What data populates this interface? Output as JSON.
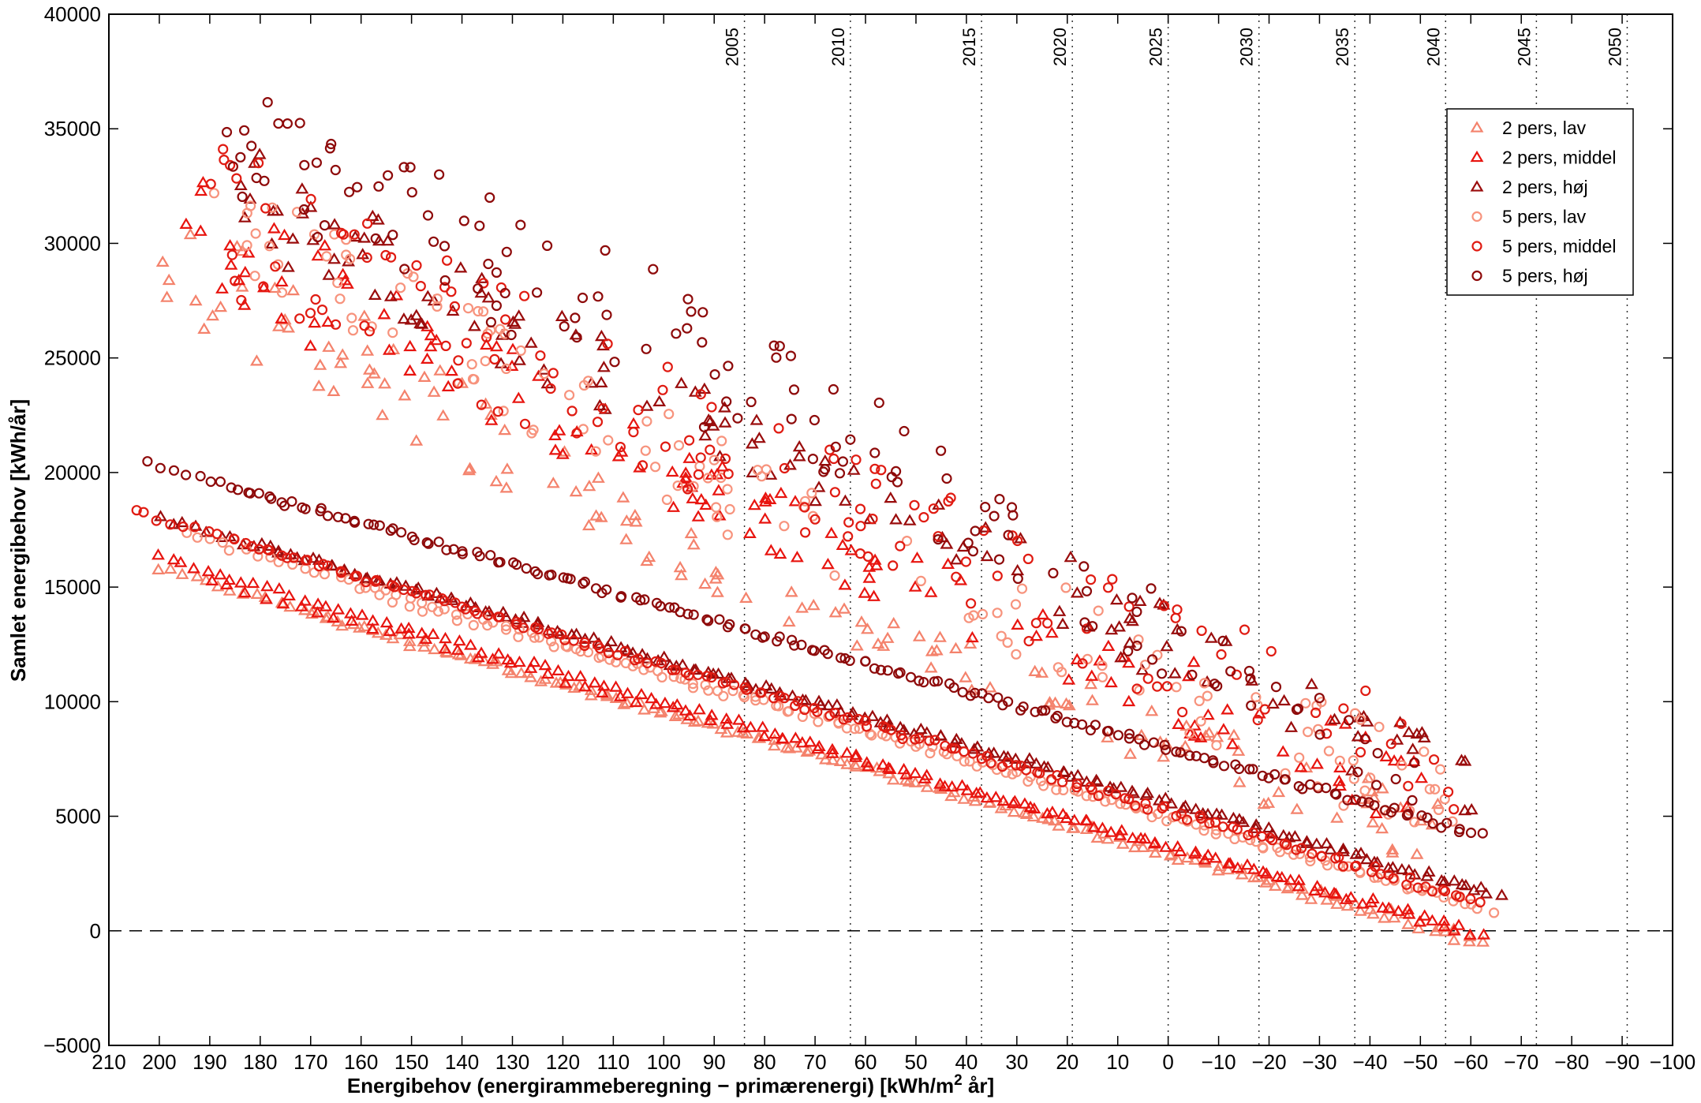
{
  "chart_data": {
    "type": "scatter",
    "title": "",
    "xlabel_main": "Energibehov (energirammeberegning − primærenergi) [kWh/m",
    "xlabel_sup": "2",
    "xlabel_tail": " år]",
    "ylabel": "Samlet energibehov [kWh/år]",
    "xlim": [
      210,
      -100
    ],
    "ylim": [
      -5000,
      40000
    ],
    "x_reversed": true,
    "x_ticks": [
      210,
      200,
      190,
      180,
      170,
      160,
      150,
      140,
      130,
      120,
      110,
      100,
      90,
      80,
      70,
      60,
      50,
      40,
      30,
      20,
      10,
      0,
      -10,
      -20,
      -30,
      -40,
      -50,
      -60,
      -70,
      -80,
      -90,
      -100
    ],
    "x_tick_labels": [
      "210",
      "200",
      "190",
      "180",
      "170",
      "160",
      "150",
      "140",
      "130",
      "120",
      "110",
      "100",
      "90",
      "80",
      "70",
      "60",
      "50",
      "40",
      "30",
      "20",
      "10",
      "0",
      "−10",
      "−20",
      "−30",
      "−40",
      "−50",
      "−60",
      "−70",
      "−80",
      "−90",
      "−100"
    ],
    "y_ticks": [
      -5000,
      0,
      5000,
      10000,
      15000,
      20000,
      25000,
      30000,
      35000,
      40000
    ],
    "y_tick_labels": [
      "−5000",
      "0",
      "5000",
      "10000",
      "15000",
      "20000",
      "25000",
      "30000",
      "35000",
      "40000"
    ],
    "grid": false,
    "reference_lines": [
      {
        "label": "2005",
        "x": 84
      },
      {
        "label": "2010",
        "x": 63
      },
      {
        "label": "2015",
        "x": 37
      },
      {
        "label": "2020",
        "x": 19
      },
      {
        "label": "2025",
        "x": 0
      },
      {
        "label": "2030",
        "x": -18
      },
      {
        "label": "2035",
        "x": -37
      },
      {
        "label": "2040",
        "x": -55
      },
      {
        "label": "2045",
        "x": -73
      },
      {
        "label": "2050",
        "x": -91
      }
    ],
    "zero_line": 0,
    "legend_position": "top-right",
    "series": [
      {
        "name": "2 pers, lav",
        "marker": "triangle",
        "color": "#f4826c",
        "lines": [
          [
            200,
            15800,
            -62,
            -600
          ],
          [
            170,
            13700,
            -60,
            -150
          ]
        ],
        "cloud": {
          "x": [
            200,
            85
          ],
          "y_top": [
            33000,
            16000
          ],
          "y_bot": [
            27000,
            14000
          ],
          "x2": [
            85,
            -55
          ],
          "y2_top": [
            16000,
            5500
          ],
          "y2_bot": [
            14000,
            2500
          ]
        }
      },
      {
        "name": "2 pers, middel",
        "marker": "triangle",
        "color": "#e8140f",
        "lines": [
          [
            200,
            16300,
            -62,
            -250
          ],
          [
            190,
            15200,
            -58,
            200
          ]
        ],
        "cloud": {
          "x": [
            195,
            85
          ],
          "y_top": [
            33500,
            20000
          ],
          "y_bot": [
            28000,
            17000
          ],
          "x2": [
            85,
            -58
          ],
          "y2_top": [
            20000,
            7000
          ],
          "y2_bot": [
            17000,
            3500
          ]
        }
      },
      {
        "name": "2 pers, høj",
        "marker": "triangle",
        "color": "#9a0c0c",
        "lines": [
          [
            200,
            18000,
            -66,
            1500
          ],
          [
            180,
            16800,
            -62,
            1800
          ]
        ],
        "cloud": {
          "x": [
            185,
            85
          ],
          "y_top": [
            34500,
            23000
          ],
          "y_bot": [
            30000,
            20000
          ],
          "x2": [
            85,
            -62
          ],
          "y2_top": [
            23000,
            8000
          ],
          "y2_bot": [
            20000,
            4000
          ]
        }
      },
      {
        "name": "5 pers, lav",
        "marker": "circle",
        "color": "#f7937d",
        "lines": [
          [
            195,
            17300,
            -64,
            900
          ],
          [
            160,
            14800,
            -60,
            1200
          ]
        ],
        "cloud": {
          "x": [
            190,
            85
          ],
          "y_top": [
            33500,
            21000
          ],
          "y_bot": [
            29000,
            17000
          ],
          "x2": [
            85,
            -57
          ],
          "y2_top": [
            21000,
            8000
          ],
          "y2_bot": [
            17000,
            3000
          ]
        }
      },
      {
        "name": "5 pers, middel",
        "marker": "circle",
        "color": "#e01b12",
        "lines": [
          [
            205,
            18300,
            -62,
            1200
          ],
          [
            185,
            17000,
            -58,
            1600
          ]
        ],
        "cloud": {
          "x": [
            190,
            85
          ],
          "y_top": [
            35000,
            23000
          ],
          "y_bot": [
            28000,
            18000
          ],
          "x2": [
            85,
            -60
          ],
          "y2_top": [
            23000,
            9000
          ],
          "y2_bot": [
            18000,
            4000
          ]
        }
      },
      {
        "name": "5 pers, høj",
        "marker": "circle",
        "color": "#8e0a0a",
        "lines": [
          [
            202,
            20400,
            -62,
            4200
          ],
          [
            185,
            19300,
            -58,
            4400
          ]
        ],
        "cloud": {
          "x": [
            188,
            85
          ],
          "y_top": [
            37200,
            27500
          ],
          "y_bot": [
            32000,
            21000
          ],
          "x2": [
            85,
            -52
          ],
          "y2_top": [
            27500,
            7000
          ],
          "y2_bot": [
            21000,
            5000
          ]
        }
      }
    ]
  }
}
